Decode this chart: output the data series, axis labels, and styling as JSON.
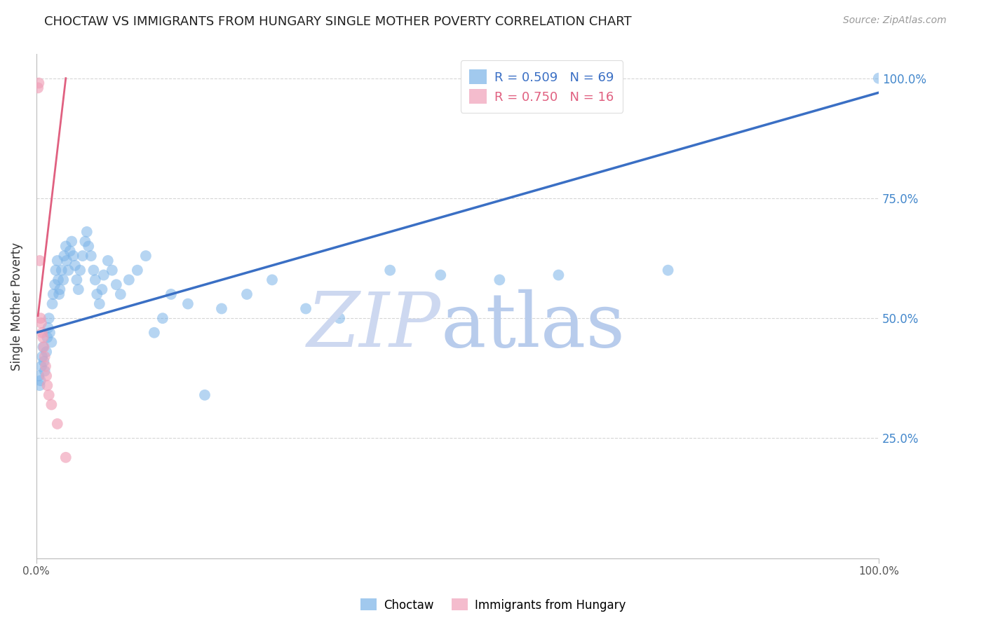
{
  "title": "CHOCTAW VS IMMIGRANTS FROM HUNGARY SINGLE MOTHER POVERTY CORRELATION CHART",
  "source": "Source: ZipAtlas.com",
  "ylabel": "Single Mother Poverty",
  "xlim": [
    0,
    1
  ],
  "ylim": [
    0,
    1.05
  ],
  "grid_color": "#cccccc",
  "blue_color": "#7ab3e8",
  "pink_color": "#f0a0b8",
  "blue_line_color": "#3a6fc4",
  "pink_line_color": "#e06080",
  "blue_scatter_x": [
    0.003,
    0.004,
    0.005,
    0.006,
    0.007,
    0.008,
    0.009,
    0.01,
    0.012,
    0.013,
    0.014,
    0.015,
    0.016,
    0.018,
    0.019,
    0.02,
    0.022,
    0.023,
    0.025,
    0.026,
    0.027,
    0.028,
    0.03,
    0.032,
    0.033,
    0.035,
    0.036,
    0.038,
    0.04,
    0.042,
    0.044,
    0.046,
    0.048,
    0.05,
    0.052,
    0.055,
    0.058,
    0.06,
    0.062,
    0.065,
    0.068,
    0.07,
    0.072,
    0.075,
    0.078,
    0.08,
    0.085,
    0.09,
    0.095,
    0.1,
    0.11,
    0.12,
    0.13,
    0.14,
    0.15,
    0.16,
    0.18,
    0.2,
    0.22,
    0.25,
    0.28,
    0.32,
    0.36,
    0.42,
    0.48,
    0.55,
    0.62,
    0.75,
    1.0
  ],
  "blue_scatter_y": [
    0.38,
    0.36,
    0.37,
    0.4,
    0.42,
    0.44,
    0.41,
    0.39,
    0.43,
    0.46,
    0.48,
    0.5,
    0.47,
    0.45,
    0.53,
    0.55,
    0.57,
    0.6,
    0.62,
    0.58,
    0.55,
    0.56,
    0.6,
    0.58,
    0.63,
    0.65,
    0.62,
    0.6,
    0.64,
    0.66,
    0.63,
    0.61,
    0.58,
    0.56,
    0.6,
    0.63,
    0.66,
    0.68,
    0.65,
    0.63,
    0.6,
    0.58,
    0.55,
    0.53,
    0.56,
    0.59,
    0.62,
    0.6,
    0.57,
    0.55,
    0.58,
    0.6,
    0.63,
    0.47,
    0.5,
    0.55,
    0.53,
    0.34,
    0.52,
    0.55,
    0.58,
    0.52,
    0.5,
    0.6,
    0.59,
    0.58,
    0.59,
    0.6,
    1.0
  ],
  "pink_scatter_x": [
    0.002,
    0.003,
    0.004,
    0.005,
    0.006,
    0.007,
    0.008,
    0.009,
    0.01,
    0.011,
    0.012,
    0.013,
    0.015,
    0.018,
    0.025,
    0.035
  ],
  "pink_scatter_y": [
    0.98,
    0.99,
    0.62,
    0.5,
    0.49,
    0.47,
    0.46,
    0.44,
    0.42,
    0.4,
    0.38,
    0.36,
    0.34,
    0.32,
    0.28,
    0.21
  ],
  "blue_trend_x": [
    0.0,
    1.0
  ],
  "blue_trend_y": [
    0.47,
    0.97
  ],
  "pink_trend_x": [
    0.002,
    0.035
  ],
  "pink_trend_y": [
    0.505,
    1.0
  ],
  "figsize": [
    14.06,
    8.92
  ],
  "dpi": 100,
  "bottom_labels": [
    "Choctaw",
    "Immigrants from Hungary"
  ],
  "legend_text1": "R = 0.509   N = 69",
  "legend_text2": "R = 0.750   N = 16"
}
